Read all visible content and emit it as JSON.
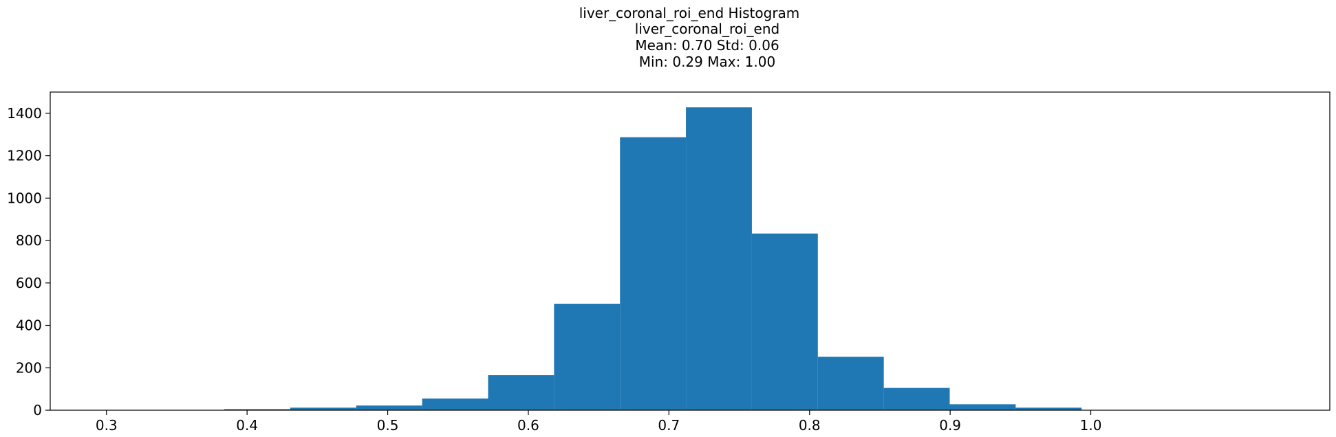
{
  "chart_data": {
    "type": "bar",
    "title_lines": [
      "liver_coronal_roi_end Histogram",
      "liver_coronal_roi_end",
      "Mean: 0.70 Std: 0.06",
      "Min: 0.29 Max: 1.00"
    ],
    "xlabel": "",
    "ylabel": "",
    "xlim": [
      0.26,
      1.17
    ],
    "ylim": [
      0,
      1500
    ],
    "xticks": [
      0.3,
      0.4,
      0.5,
      0.6,
      0.7,
      0.8,
      0.9,
      1.0
    ],
    "xtick_labels": [
      "0.3",
      "0.4",
      "0.5",
      "0.6",
      "0.7",
      "0.8",
      "0.9",
      "1.0"
    ],
    "yticks": [
      0,
      200,
      400,
      600,
      800,
      1000,
      1200,
      1400
    ],
    "ytick_labels": [
      "0",
      "200",
      "400",
      "600",
      "800",
      "1000",
      "1200",
      "1400"
    ],
    "bin_edges": [
      0.29,
      0.3369,
      0.3838,
      0.4307,
      0.4776,
      0.5245,
      0.5714,
      0.6183,
      0.6652,
      0.7121,
      0.759,
      0.8059,
      0.8528,
      0.8997,
      0.9466,
      0.9935
    ],
    "values": [
      1,
      1,
      5,
      12,
      22,
      55,
      165,
      502,
      1287,
      1428,
      833,
      252,
      105,
      28,
      12,
      7
    ],
    "bar_color": "#1f77b4",
    "grid": false,
    "legend": "none"
  }
}
